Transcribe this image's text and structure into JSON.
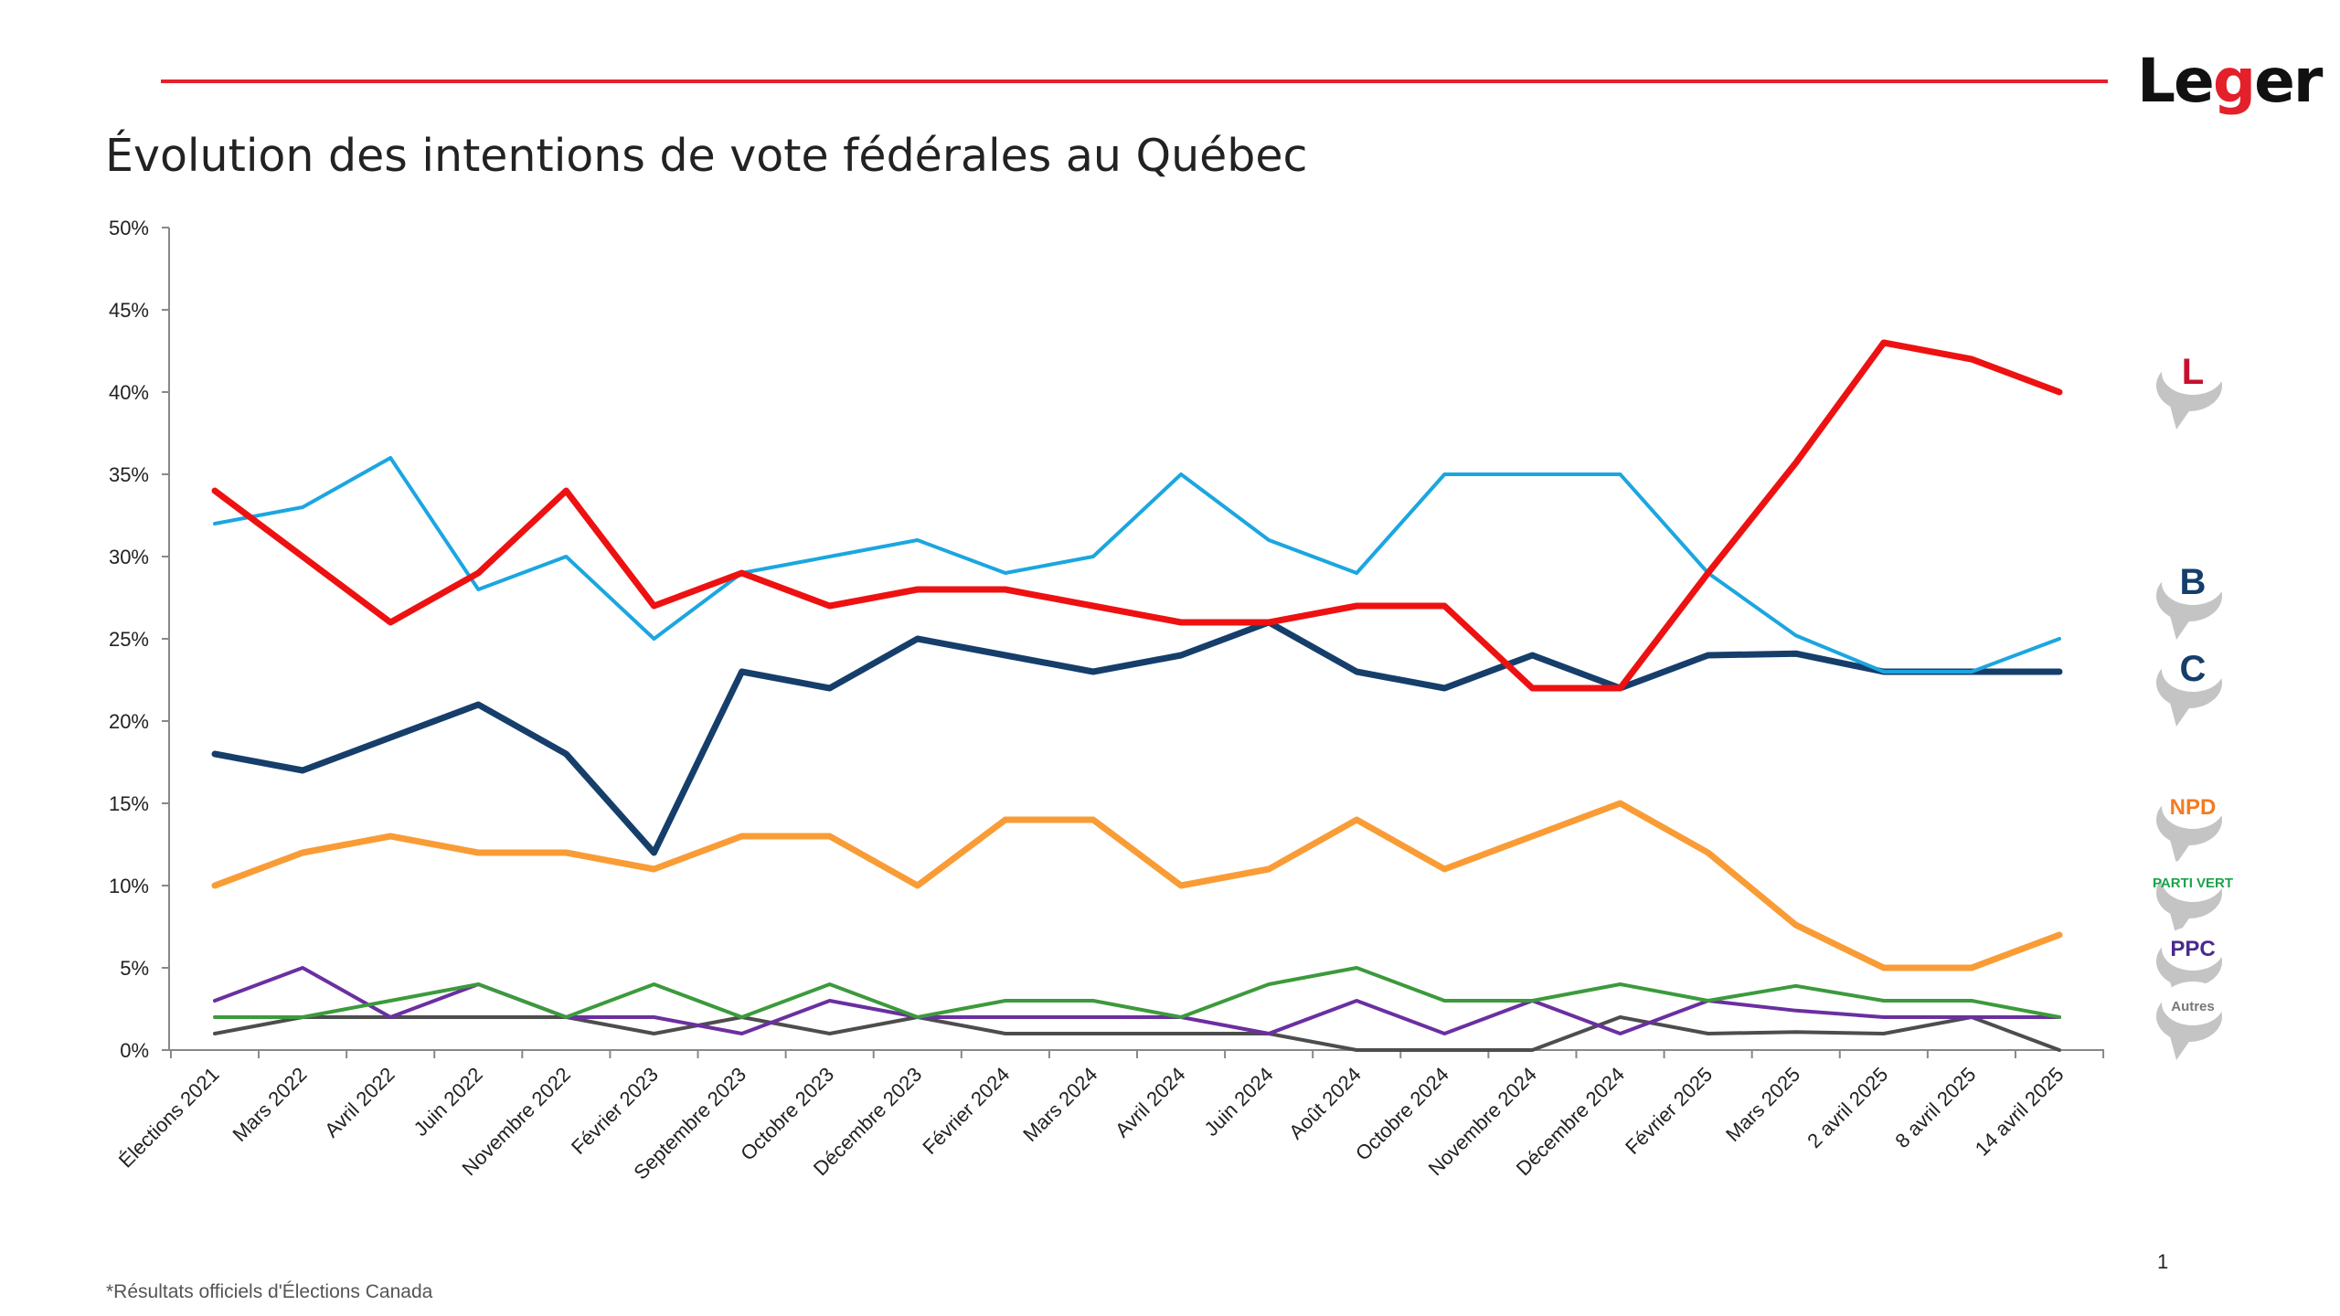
{
  "header": {
    "logo_text": "Leger",
    "page_number": "1"
  },
  "footnote": "*Résultats officiels d'Élections Canada",
  "chart_data": {
    "type": "line",
    "title": "Évolution des intentions de vote fédérales au Québec",
    "xlabel": "",
    "ylabel": "",
    "ylim": [
      0,
      50
    ],
    "yticks": [
      "0%",
      "5%",
      "10%",
      "15%",
      "20%",
      "25%",
      "30%",
      "35%",
      "40%",
      "45%",
      "50%"
    ],
    "ytick_values": [
      0,
      5,
      10,
      15,
      20,
      25,
      30,
      35,
      40,
      45,
      50
    ],
    "grid": false,
    "legend_placement": "right (party logos)",
    "categories": [
      "Élections 2021",
      "Mars 2022",
      "Avril 2022",
      "Juin 2022",
      "Novembre 2022",
      "Février 2023",
      "Septembre 2023",
      "Octobre 2023",
      "Décembre 2023",
      "Février 2024",
      "Mars 2024",
      "Avril 2024",
      "Juin 2024",
      "Août 2024",
      "Octobre 2024",
      "Novembre 2024",
      "Décembre 2024",
      "Février 2025",
      "Mars 2025",
      "2 avril 2025",
      "8 avril 2025",
      "14 avril 2025"
    ],
    "series": [
      {
        "name": "Libéral",
        "legend": "L",
        "color": "#ee1111",
        "width": 7,
        "values": [
          34,
          30,
          26,
          29,
          34,
          27,
          29,
          27,
          28,
          28,
          27,
          26,
          26,
          27,
          27,
          22,
          22,
          29,
          35.7,
          43,
          42,
          40
        ]
      },
      {
        "name": "Bloc Québécois",
        "legend": "B",
        "color": "#1ba6e0",
        "width": 4,
        "values": [
          32,
          33,
          36,
          28,
          30,
          25,
          29,
          30,
          31,
          29,
          30,
          35,
          31,
          29,
          35,
          35,
          35,
          29,
          25.2,
          23,
          23,
          25
        ]
      },
      {
        "name": "Conservateur",
        "legend": "C",
        "color": "#163e6b",
        "width": 7,
        "values": [
          18,
          17,
          19,
          21,
          18,
          12,
          23,
          22,
          25,
          24,
          23,
          24,
          26,
          23,
          22,
          24,
          22,
          24,
          24.1,
          23,
          23,
          23
        ]
      },
      {
        "name": "NPD",
        "legend": "NPD",
        "color": "#f99c36",
        "width": 7,
        "values": [
          10,
          12,
          13,
          12,
          12,
          11,
          13,
          13,
          10,
          14,
          14,
          10,
          11,
          14,
          11,
          13,
          15,
          12,
          7.6,
          5,
          5,
          7
        ]
      },
      {
        "name": "Parti Vert",
        "legend": "PARTI VERT",
        "color": "#3c9a3c",
        "width": 4,
        "values": [
          2,
          2,
          3,
          4,
          2,
          4,
          2,
          4,
          2,
          3,
          3,
          2,
          4,
          5,
          3,
          3,
          4,
          3,
          3.9,
          3,
          3,
          2
        ]
      },
      {
        "name": "PPC",
        "legend": "PPC",
        "color": "#6a2fa0",
        "width": 4,
        "values": [
          3,
          5,
          2,
          4,
          2,
          2,
          1,
          3,
          2,
          2,
          2,
          2,
          1,
          3,
          1,
          3,
          1,
          3,
          2.4,
          2,
          2,
          2
        ]
      },
      {
        "name": "Autres",
        "legend": "Autres",
        "color": "#4d4d4d",
        "width": 4,
        "values": [
          1,
          2,
          2,
          2,
          2,
          1,
          2,
          1,
          2,
          1,
          1,
          1,
          1,
          0,
          0,
          0,
          2,
          1,
          1.1,
          1,
          2,
          0
        ]
      }
    ]
  }
}
